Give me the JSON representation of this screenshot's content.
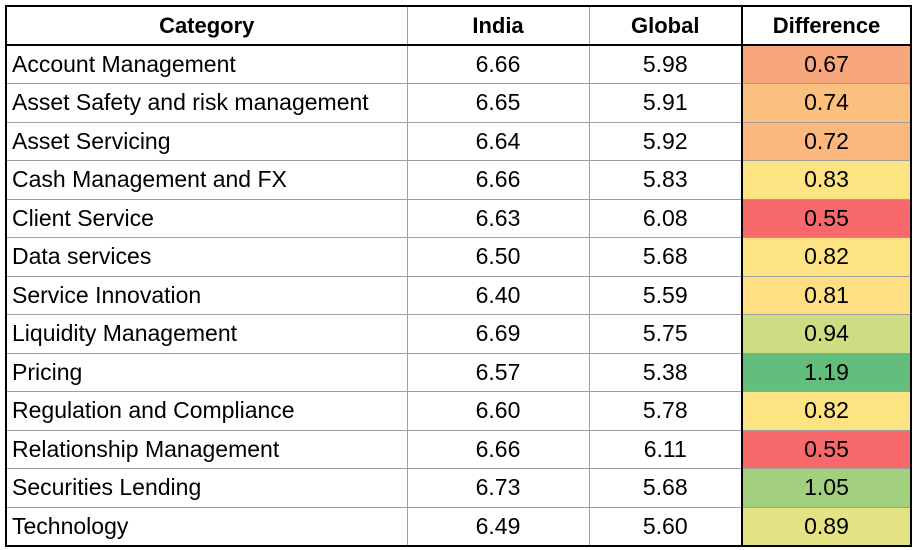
{
  "chart_data": {
    "type": "table",
    "columns": [
      "Category",
      "India",
      "Global",
      "Difference"
    ],
    "rows": [
      {
        "category": "Account Management",
        "india": "6.66",
        "global": "5.98",
        "difference": "0.67",
        "color": "#f8a77d"
      },
      {
        "category": "Asset Safety and risk management",
        "india": "6.65",
        "global": "5.91",
        "difference": "0.74",
        "color": "#fbbf7e"
      },
      {
        "category": "Asset Servicing",
        "india": "6.64",
        "global": "5.92",
        "difference": "0.72",
        "color": "#fbb87e"
      },
      {
        "category": "Cash Management and FX",
        "india": "6.66",
        "global": "5.83",
        "difference": "0.83",
        "color": "#fee383"
      },
      {
        "category": "Client Service",
        "india": "6.63",
        "global": "6.08",
        "difference": "0.55",
        "color": "#f8696b"
      },
      {
        "category": "Data services",
        "india": "6.50",
        "global": "5.68",
        "difference": "0.82",
        "color": "#fee383"
      },
      {
        "category": "Service Innovation",
        "india": "6.40",
        "global": "5.59",
        "difference": "0.81",
        "color": "#fedf81"
      },
      {
        "category": "Liquidity Management",
        "india": "6.69",
        "global": "5.75",
        "difference": "0.94",
        "color": "#cddd82"
      },
      {
        "category": "Pricing",
        "india": "6.57",
        "global": "5.38",
        "difference": "1.19",
        "color": "#63be7b"
      },
      {
        "category": "Regulation and Compliance",
        "india": "6.60",
        "global": "5.78",
        "difference": "0.82",
        "color": "#fee383"
      },
      {
        "category": "Relationship Management",
        "india": "6.66",
        "global": "6.11",
        "difference": "0.55",
        "color": "#f8696b"
      },
      {
        "category": "Securities Lending",
        "india": "6.73",
        "global": "5.68",
        "difference": "1.05",
        "color": "#a2d07f"
      },
      {
        "category": "Technology",
        "india": "6.49",
        "global": "5.60",
        "difference": "0.89",
        "color": "#e3e383"
      }
    ]
  }
}
